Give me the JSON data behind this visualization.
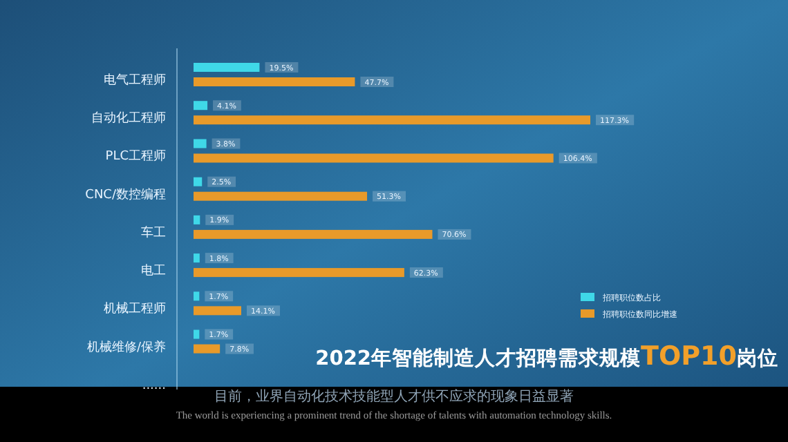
{
  "chart_data": {
    "type": "bar",
    "orientation": "horizontal",
    "title": "2022年智能制造人才招聘需求规模**TOP10**岗位",
    "categories": [
      "电气工程师",
      "自动化工程师",
      "PLC工程师",
      "CNC/数控编程",
      "车工",
      "电工",
      "机械工程师",
      "机械维修/保养",
      "......"
    ],
    "series": [
      {
        "name": "招聘职位数占比",
        "color": "#3fd8e8",
        "values": [
          19.5,
          4.1,
          3.8,
          2.5,
          1.9,
          1.8,
          1.7,
          1.7,
          null
        ],
        "value_labels": [
          "19.5%",
          "4.1%",
          "3.8%",
          "2.5%",
          "1.9%",
          "1.8%",
          "1.7%",
          "1.7%",
          null
        ]
      },
      {
        "name": "招聘职位数同比增速",
        "color": "#e89a2a",
        "values": [
          47.7,
          117.3,
          106.4,
          51.3,
          70.6,
          62.3,
          14.1,
          7.8,
          null
        ],
        "value_labels": [
          "47.7%",
          "117.3%",
          "106.4%",
          "51.3%",
          "70.6%",
          "62.3%",
          "14.1%",
          "7.8%",
          null
        ]
      }
    ],
    "tick_labels": "y",
    "legend": "bottom right",
    "annotations": [
      "目前，业界自动化技术技能型人才供不应求的现象日益显著",
      "The world is experiencing a prominent trend of the shortage of talents with automation technology skills."
    ]
  }
}
